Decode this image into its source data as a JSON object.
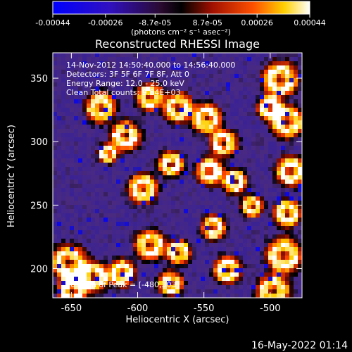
{
  "colorbar": {
    "tick_labels": [
      "-0.00044",
      "-0.00026",
      "-8.7e-05",
      "8.7e-05",
      "0.00026",
      "0.00044"
    ],
    "unit_label": "(photons cm⁻² s⁻¹ asec⁻²)",
    "range": [
      -0.00044,
      0.00044
    ]
  },
  "chart_data": {
    "type": "heatmap",
    "title": "Reconstructed RHESSI Image",
    "xlabel": "Heliocentric X (arcsec)",
    "ylabel": "Heliocentric Y (arcsec)",
    "xlim": [
      -664,
      -476
    ],
    "ylim": [
      177,
      370
    ],
    "x_ticks": [
      "-650",
      "-600",
      "-550",
      "-500"
    ],
    "y_ticks": [
      "200",
      "250",
      "300",
      "350"
    ],
    "x_tick_values": [
      -650,
      -600,
      -550,
      -500
    ],
    "y_tick_values": [
      200,
      250,
      300,
      350
    ],
    "annotations": [
      "14-Nov-2012 14:50:40.000 to 14:56:40.000",
      "Detectors: 3F 5F 6F 7F 8F, Att 0",
      "Energy Range: 12.0 - 25.0 keV",
      "Clean    Total counts: 9.84E+03"
    ],
    "peak_label": "Position of Peak = [-480,303]",
    "colormap": [
      "#0000ff",
      "#2a1aa8",
      "#4a2a80",
      "#000000",
      "#8a0f00",
      "#ff4500",
      "#ffd000",
      "#ffffff"
    ]
  },
  "footer": {
    "timestamp": "16-May-2022 01:14"
  }
}
